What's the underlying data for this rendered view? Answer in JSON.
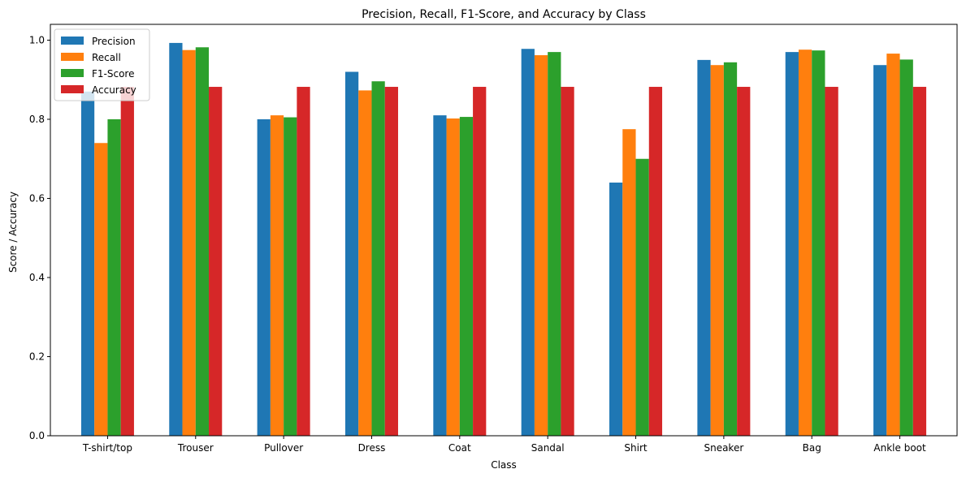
{
  "chart_data": {
    "type": "bar",
    "title": "Precision, Recall, F1-Score, and Accuracy by Class",
    "xlabel": "Class",
    "ylabel": "Score / Accuracy",
    "ylim": [
      0,
      1.04
    ],
    "yticks": [
      0.0,
      0.2,
      0.4,
      0.6,
      0.8,
      1.0
    ],
    "ytick_labels": [
      "0.0",
      "0.2",
      "0.4",
      "0.6",
      "0.8",
      "1.0"
    ],
    "grid": false,
    "legend_position": "top-left",
    "categories": [
      "T-shirt/top",
      "Trouser",
      "Pullover",
      "Dress",
      "Coat",
      "Sandal",
      "Shirt",
      "Sneaker",
      "Bag",
      "Ankle boot"
    ],
    "series": [
      {
        "name": "Precision",
        "color": "#1f77b4",
        "values": [
          0.87,
          0.993,
          0.8,
          0.92,
          0.81,
          0.978,
          0.64,
          0.95,
          0.97,
          0.937
        ]
      },
      {
        "name": "Recall",
        "color": "#ff7f0e",
        "values": [
          0.74,
          0.975,
          0.81,
          0.873,
          0.802,
          0.962,
          0.775,
          0.937,
          0.976,
          0.966
        ]
      },
      {
        "name": "F1-Score",
        "color": "#2ca02c",
        "values": [
          0.8,
          0.982,
          0.805,
          0.896,
          0.806,
          0.97,
          0.7,
          0.944,
          0.974,
          0.951
        ]
      },
      {
        "name": "Accuracy",
        "color": "#d62728",
        "values": [
          0.882,
          0.882,
          0.882,
          0.882,
          0.882,
          0.882,
          0.882,
          0.882,
          0.882,
          0.882
        ]
      }
    ]
  }
}
